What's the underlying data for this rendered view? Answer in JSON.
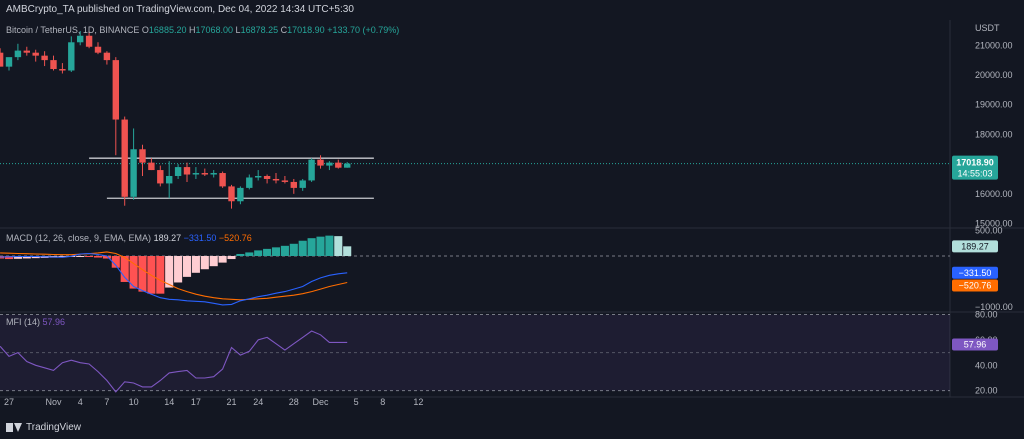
{
  "header": {
    "publisher": "AMBCrypto_TA published on TradingView.com, Dec 04, 2022 14:34 UTC+5:30"
  },
  "footer": {
    "brand": "TradingView"
  },
  "chart_data": {
    "type": "candlestick",
    "symbol": "Bitcoin / TetherUS, 1D, BINANCE",
    "currency": "USDT",
    "ohlc_legend": {
      "o_label": "O",
      "o": "16885.20",
      "h_label": "H",
      "h": "17068.00",
      "l_label": "L",
      "l": "16878.25",
      "c_label": "C",
      "c": "17018.90",
      "change": "+133.70 (+0.79%)"
    },
    "price_axis": {
      "ticks": [
        "21000.00",
        "20000.00",
        "19000.00",
        "18000.00",
        "16000.00",
        "15000.00"
      ],
      "tick_values": [
        21000,
        20000,
        19000,
        18000,
        16000,
        15000
      ],
      "ylim": [
        14850,
        21850
      ],
      "last_price_label": "17018.90",
      "countdown_label": "14:55:03"
    },
    "x_axis": {
      "ticks": [
        "27",
        "Nov",
        "4",
        "7",
        "10",
        "14",
        "17",
        "21",
        "24",
        "28",
        "Dec",
        "5",
        "8",
        "12"
      ],
      "tick_dates": [
        "2022-10-27",
        "2022-11-01",
        "2022-11-04",
        "2022-11-07",
        "2022-11-10",
        "2022-11-14",
        "2022-11-17",
        "2022-11-21",
        "2022-11-24",
        "2022-11-28",
        "2022-12-01",
        "2022-12-05",
        "2022-12-08",
        "2022-12-12"
      ]
    },
    "candles": [
      {
        "date": "2022-10-26",
        "o": 20750,
        "h": 20900,
        "l": 20300,
        "c": 20280
      },
      {
        "date": "2022-10-27",
        "o": 20280,
        "h": 20550,
        "l": 20150,
        "c": 20600
      },
      {
        "date": "2022-10-28",
        "o": 20600,
        "h": 21050,
        "l": 20500,
        "c": 20820
      },
      {
        "date": "2022-10-29",
        "o": 20820,
        "h": 20950,
        "l": 20650,
        "c": 20750
      },
      {
        "date": "2022-10-30",
        "o": 20750,
        "h": 20850,
        "l": 20450,
        "c": 20650
      },
      {
        "date": "2022-10-31",
        "o": 20650,
        "h": 20800,
        "l": 20300,
        "c": 20500
      },
      {
        "date": "2022-11-01",
        "o": 20500,
        "h": 20650,
        "l": 20150,
        "c": 20200
      },
      {
        "date": "2022-11-02",
        "o": 20200,
        "h": 20400,
        "l": 20050,
        "c": 20150
      },
      {
        "date": "2022-11-03",
        "o": 20150,
        "h": 21300,
        "l": 20100,
        "c": 21100
      },
      {
        "date": "2022-11-04",
        "o": 21100,
        "h": 21480,
        "l": 21000,
        "c": 21320
      },
      {
        "date": "2022-11-05",
        "o": 21320,
        "h": 21470,
        "l": 20900,
        "c": 20950
      },
      {
        "date": "2022-11-06",
        "o": 20950,
        "h": 21100,
        "l": 20700,
        "c": 20750
      },
      {
        "date": "2022-11-07",
        "o": 20750,
        "h": 20800,
        "l": 20350,
        "c": 20500
      },
      {
        "date": "2022-11-08",
        "o": 20500,
        "h": 20600,
        "l": 17300,
        "c": 18500
      },
      {
        "date": "2022-11-09",
        "o": 18500,
        "h": 18600,
        "l": 15600,
        "c": 15900
      },
      {
        "date": "2022-11-10",
        "o": 15900,
        "h": 18200,
        "l": 15800,
        "c": 17500
      },
      {
        "date": "2022-11-11",
        "o": 17500,
        "h": 17650,
        "l": 16600,
        "c": 17050
      },
      {
        "date": "2022-11-12",
        "o": 17050,
        "h": 17200,
        "l": 16800,
        "c": 16800
      },
      {
        "date": "2022-11-13",
        "o": 16800,
        "h": 16950,
        "l": 16250,
        "c": 16350
      },
      {
        "date": "2022-11-14",
        "o": 16350,
        "h": 17100,
        "l": 15850,
        "c": 16600
      },
      {
        "date": "2022-11-15",
        "o": 16600,
        "h": 17000,
        "l": 16500,
        "c": 16900
      },
      {
        "date": "2022-11-16",
        "o": 16900,
        "h": 17050,
        "l": 16400,
        "c": 16650
      },
      {
        "date": "2022-11-17",
        "o": 16650,
        "h": 16900,
        "l": 16500,
        "c": 16700
      },
      {
        "date": "2022-11-18",
        "o": 16700,
        "h": 16850,
        "l": 16600,
        "c": 16650
      },
      {
        "date": "2022-11-19",
        "o": 16650,
        "h": 16800,
        "l": 16550,
        "c": 16700
      },
      {
        "date": "2022-11-20",
        "o": 16700,
        "h": 16750,
        "l": 16200,
        "c": 16250
      },
      {
        "date": "2022-11-21",
        "o": 16250,
        "h": 16300,
        "l": 15500,
        "c": 15750
      },
      {
        "date": "2022-11-22",
        "o": 15750,
        "h": 16250,
        "l": 15650,
        "c": 16200
      },
      {
        "date": "2022-11-23",
        "o": 16200,
        "h": 16650,
        "l": 16150,
        "c": 16550
      },
      {
        "date": "2022-11-24",
        "o": 16550,
        "h": 16800,
        "l": 16450,
        "c": 16600
      },
      {
        "date": "2022-11-25",
        "o": 16600,
        "h": 16650,
        "l": 16350,
        "c": 16500
      },
      {
        "date": "2022-11-26",
        "o": 16500,
        "h": 16700,
        "l": 16350,
        "c": 16450
      },
      {
        "date": "2022-11-27",
        "o": 16450,
        "h": 16600,
        "l": 16350,
        "c": 16400
      },
      {
        "date": "2022-11-28",
        "o": 16400,
        "h": 16500,
        "l": 16000,
        "c": 16200
      },
      {
        "date": "2022-11-29",
        "o": 16200,
        "h": 16500,
        "l": 16100,
        "c": 16450
      },
      {
        "date": "2022-11-30",
        "o": 16450,
        "h": 17200,
        "l": 16400,
        "c": 17150
      },
      {
        "date": "2022-12-01",
        "o": 17150,
        "h": 17300,
        "l": 16850,
        "c": 16950
      },
      {
        "date": "2022-12-02",
        "o": 16950,
        "h": 17100,
        "l": 16800,
        "c": 17050
      },
      {
        "date": "2022-12-03",
        "o": 17050,
        "h": 17150,
        "l": 16850,
        "c": 16880
      },
      {
        "date": "2022-12-04",
        "o": 16880,
        "h": 17068,
        "l": 16878,
        "c": 17018
      }
    ],
    "horizontal_lines": [
      {
        "price": 17200,
        "from": "2022-11-05",
        "to": "2022-12-07"
      },
      {
        "price": 15850,
        "from": "2022-11-07",
        "to": "2022-12-07"
      }
    ],
    "macd": {
      "legend_name": "MACD (12, 26, close, 9, EMA, EMA)",
      "hist_label": "189.27",
      "macd_label": "−331.50",
      "signal_label": "−520.76",
      "ticks": [
        "500.00",
        "−1000.00"
      ],
      "tick_values": [
        500,
        -1000
      ],
      "ylim": [
        -1100,
        550
      ],
      "histogram": [
        -50,
        -60,
        -55,
        -48,
        -42,
        -38,
        -32,
        -28,
        -15,
        -5,
        -8,
        -30,
        -50,
        -230,
        -510,
        -640,
        -700,
        -740,
        -740,
        -620,
        -520,
        -410,
        -330,
        -260,
        -200,
        -130,
        -60,
        40,
        70,
        110,
        140,
        170,
        200,
        240,
        300,
        350,
        380,
        400,
        390,
        190
      ],
      "macd_line": [
        -20,
        -15,
        -10,
        -10,
        -10,
        -15,
        -20,
        -25,
        -5,
        40,
        50,
        30,
        0,
        -180,
        -420,
        -600,
        -680,
        -750,
        -820,
        -850,
        -860,
        -880,
        -890,
        -900,
        -930,
        -960,
        -950,
        -880,
        -840,
        -800,
        -770,
        -730,
        -700,
        -650,
        -600,
        -500,
        -430,
        -380,
        -350,
        -330
      ],
      "signal_line": [
        60,
        55,
        50,
        45,
        40,
        35,
        30,
        25,
        25,
        35,
        45,
        60,
        80,
        50,
        -30,
        -150,
        -270,
        -380,
        -480,
        -560,
        -640,
        -700,
        -750,
        -790,
        -820,
        -840,
        -850,
        -860,
        -850,
        -840,
        -830,
        -810,
        -790,
        -770,
        -740,
        -700,
        -650,
        -600,
        -560,
        -520
      ]
    },
    "mfi": {
      "legend_name": "MFI (14)",
      "value_label": "57.96",
      "ticks": [
        "80.00",
        "60.00",
        "40.00",
        "20.00"
      ],
      "tick_values": [
        80,
        60,
        40,
        20
      ],
      "ylim": [
        15,
        82
      ],
      "band_upper": 80,
      "band_lower": 20,
      "line": [
        55,
        47,
        50,
        43,
        40,
        38,
        36,
        42,
        44,
        42,
        41,
        35,
        28,
        19,
        27,
        26,
        23,
        23,
        28,
        34,
        35,
        36,
        30,
        30,
        31,
        37,
        54,
        48,
        51,
        60,
        62,
        57,
        52,
        57,
        62,
        67,
        64,
        58,
        58,
        58
      ]
    }
  }
}
